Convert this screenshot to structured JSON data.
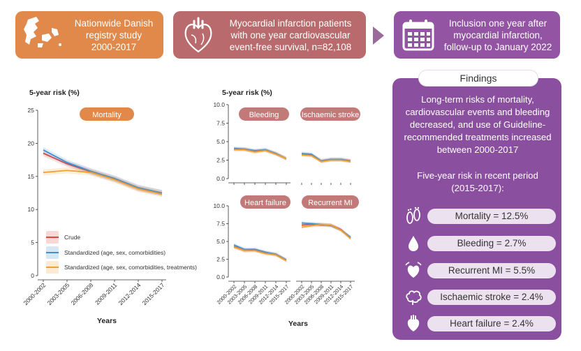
{
  "header": {
    "box1": {
      "text": "Nationwide Danish\nregistry study\n2000-2017",
      "color": "#e0894a"
    },
    "box2": {
      "text": "Myocardial infarction patients\nwith one year cardiovascular\nevent-free survival, n=82,108",
      "color": "#b96a6c"
    },
    "box3": {
      "text": "Inclusion one year after\nmyocardial infarction,\nfollow-up to January 2022",
      "color": "#9355a3"
    }
  },
  "icons": [
    "denmark-map-icon",
    "heart-icon",
    "calendar-icon",
    "footprints-icon",
    "drop-icon",
    "heart-attack-icon",
    "brain-icon",
    "heart-failure-icon"
  ],
  "findings": {
    "title": "Findings",
    "summary": "Long-term risks of mortality,\ncardiovascular events and bleeding\ndecreased, and use of Guideline-\nrecommended treatments increased\nbetween 2000-2017",
    "period": "Five-year risk in recent period\n(2015-2017):",
    "items": [
      {
        "label": "Mortality = 12.5%",
        "icon": "footprints-icon"
      },
      {
        "label": "Bleeding = 2.7%",
        "icon": "drop-icon"
      },
      {
        "label": "Recurrent MI = 5.5%",
        "icon": "heart-attack-icon"
      },
      {
        "label": "Ischaemic stroke = 2.4%",
        "icon": "brain-icon"
      },
      {
        "label": "Heart failure = 2.4%",
        "icon": "heart-failure-icon"
      }
    ]
  },
  "colors": {
    "crude": "#e0473f",
    "standardized": "#3f8fd2",
    "treatments": "#f0a030",
    "panel_title": "#c27a78",
    "mortality_title": "#e0894a"
  },
  "chart_data": [
    {
      "type": "line",
      "title": "Mortality",
      "ylabel": "5-year risk (%)",
      "xlabel": "Years",
      "x": [
        "2000-2002",
        "2003-2005",
        "2006-2008",
        "2009-2011",
        "2012-2014",
        "2015-2017"
      ],
      "ylim": [
        0,
        25
      ],
      "yticks": [
        "0",
        "5",
        "10",
        "15",
        "20",
        "25"
      ],
      "series": [
        {
          "name": "Crude",
          "values": [
            18.5,
            16.9,
            15.7,
            14.6,
            13.2,
            12.5
          ]
        },
        {
          "name": "Standardized (age, sex, comorbidities)",
          "values": [
            19.0,
            17.1,
            15.8,
            14.7,
            13.3,
            12.5
          ]
        },
        {
          "name": "Standardized (age, sex, comorbidities, treatments)",
          "values": [
            15.6,
            15.9,
            15.6,
            14.5,
            13.1,
            12.3
          ]
        }
      ],
      "legend": "bottom-left"
    },
    {
      "type": "line",
      "title": "Bleeding",
      "ylabel": "5-year risk (%)",
      "x": [
        "2000-2002",
        "2003-2005",
        "2006-2008",
        "2009-2011",
        "2012-2014",
        "2015-2017"
      ],
      "ylim": [
        0,
        10
      ],
      "yticks": [
        "0.0",
        "2.5",
        "5.0",
        "7.5",
        "10.0"
      ],
      "series": [
        {
          "name": "Crude",
          "values": [
            4.0,
            4.0,
            3.7,
            3.9,
            3.4,
            2.7
          ]
        },
        {
          "name": "Standardized (age, sex, comorbidities)",
          "values": [
            4.1,
            4.0,
            3.8,
            3.9,
            3.4,
            2.7
          ]
        },
        {
          "name": "Standardized (age, sex, comorbidities, treatments)",
          "values": [
            3.9,
            3.9,
            3.6,
            3.8,
            3.3,
            2.7
          ]
        }
      ]
    },
    {
      "type": "line",
      "title": "Ischaemic stroke",
      "x": [
        "2000-2002",
        "2003-2005",
        "2006-2008",
        "2009-2011",
        "2012-2014",
        "2015-2017"
      ],
      "ylim": [
        0,
        10
      ],
      "series": [
        {
          "name": "Crude",
          "values": [
            3.3,
            3.2,
            2.4,
            2.6,
            2.6,
            2.4
          ]
        },
        {
          "name": "Standardized (age, sex, comorbidities)",
          "values": [
            3.4,
            3.3,
            2.4,
            2.6,
            2.6,
            2.4
          ]
        },
        {
          "name": "Standardized (age, sex, comorbidities, treatments)",
          "values": [
            3.2,
            3.1,
            2.3,
            2.5,
            2.5,
            2.3
          ]
        }
      ]
    },
    {
      "type": "line",
      "title": "Heart failure",
      "xlabel": "Years",
      "x": [
        "2000-2002",
        "2003-2005",
        "2006-2008",
        "2009-2011",
        "2012-2014",
        "2015-2017"
      ],
      "ylim": [
        0,
        10
      ],
      "yticks": [
        "0.0",
        "2.5",
        "5.0",
        "7.5",
        "10.0"
      ],
      "series": [
        {
          "name": "Crude",
          "values": [
            4.3,
            3.7,
            3.8,
            3.4,
            3.2,
            2.4
          ]
        },
        {
          "name": "Standardized (age, sex, comorbidities)",
          "values": [
            4.5,
            3.9,
            3.9,
            3.5,
            3.2,
            2.4
          ]
        },
        {
          "name": "Standardized (age, sex, comorbidities, treatments)",
          "values": [
            4.2,
            3.7,
            3.7,
            3.3,
            3.1,
            2.3
          ]
        }
      ]
    },
    {
      "type": "line",
      "title": "Recurrent MI",
      "xlabel": "Years",
      "x": [
        "2000-2002",
        "2003-2005",
        "2006-2008",
        "2009-2011",
        "2012-2014",
        "2015-2017"
      ],
      "ylim": [
        0,
        10
      ],
      "series": [
        {
          "name": "Crude",
          "values": [
            7.3,
            7.4,
            7.3,
            7.3,
            6.7,
            5.5
          ]
        },
        {
          "name": "Standardized (age, sex, comorbidities)",
          "values": [
            7.6,
            7.5,
            7.4,
            7.2,
            6.6,
            5.6
          ]
        },
        {
          "name": "Standardized (age, sex, comorbidities, treatments)",
          "values": [
            7.0,
            7.2,
            7.4,
            7.3,
            6.6,
            5.4
          ]
        }
      ]
    }
  ]
}
